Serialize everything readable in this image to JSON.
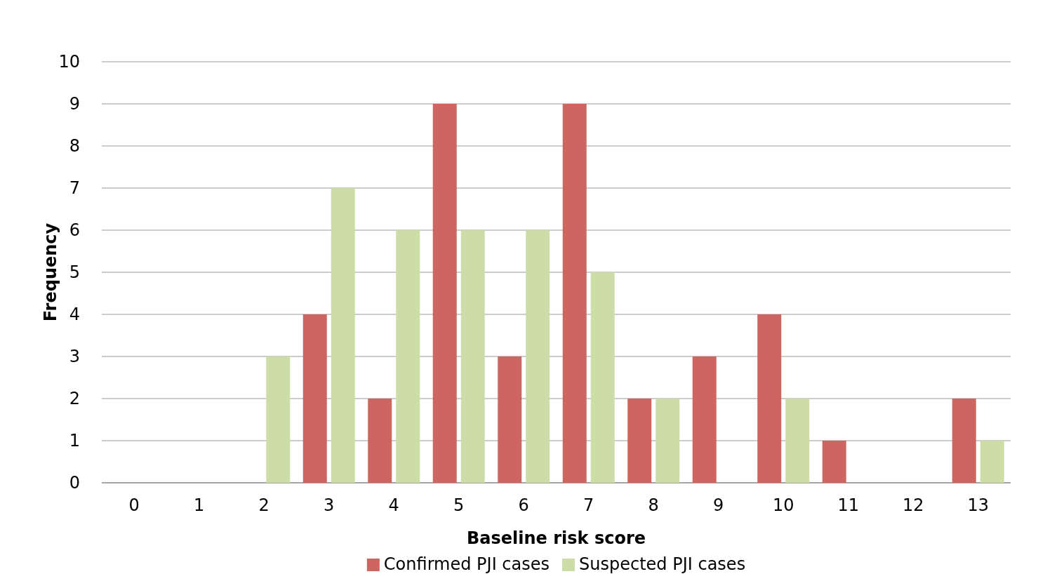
{
  "chart_data": {
    "type": "bar",
    "xlabel": "Baseline risk score",
    "ylabel": "Frequency",
    "categories": [
      "0",
      "1",
      "2",
      "3",
      "4",
      "5",
      "6",
      "7",
      "8",
      "9",
      "10",
      "11",
      "12",
      "13"
    ],
    "series": [
      {
        "name": "Confirmed PJI cases",
        "color": "#cd6660",
        "values": [
          0,
          0,
          0,
          4,
          2,
          9,
          3,
          9,
          2,
          3,
          4,
          1,
          0,
          2
        ]
      },
      {
        "name": "Suspected PJI cases",
        "color": "#ccdda8",
        "values": [
          0,
          0,
          3,
          7,
          6,
          6,
          6,
          5,
          2,
          0,
          2,
          0,
          0,
          1
        ]
      }
    ],
    "ylim": [
      0,
      10
    ],
    "yticks": [
      0,
      1,
      2,
      3,
      4,
      5,
      6,
      7,
      8,
      9,
      10
    ],
    "grid": "y",
    "legend": "bottom"
  }
}
